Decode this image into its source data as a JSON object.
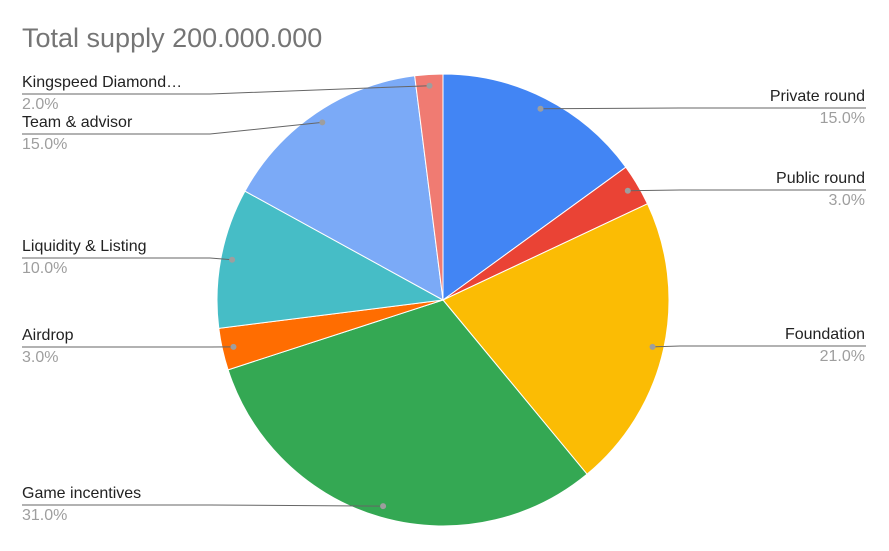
{
  "chart_data": {
    "type": "pie",
    "title": "Total supply 200.000.000",
    "categories": [
      "Private round",
      "Public round",
      "Foundation",
      "Game incentives",
      "Airdrop",
      "Liquidity & Listing",
      "Team & advisor",
      "Kingspeed Diamond…"
    ],
    "values": [
      15,
      3,
      21,
      31,
      3,
      10,
      15,
      2
    ],
    "value_labels": [
      "15.0%",
      "3.0%",
      "21.0%",
      "31.0%",
      "3.0%",
      "10.0%",
      "15.0%",
      "2.0%"
    ],
    "colors": [
      "#4285f4",
      "#ea4335",
      "#fbbc04",
      "#34a853",
      "#ff6d01",
      "#46bdc6",
      "#7baaf7",
      "#f07b72"
    ]
  }
}
